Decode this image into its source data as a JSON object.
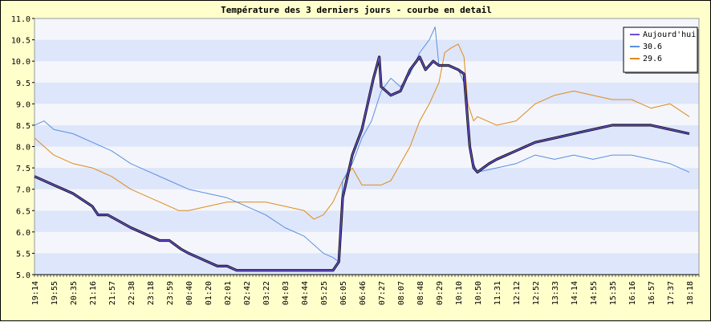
{
  "chart_data": {
    "type": "line",
    "title": "Température des 3 derniers jours - courbe en detail",
    "ylim": [
      5.0,
      11.0
    ],
    "yticks": [
      "5.0",
      "5.5",
      "6.0",
      "6.5",
      "7.0",
      "7.5",
      "8.0",
      "8.5",
      "9.0",
      "9.5",
      "10.0",
      "10.5",
      "11.0"
    ],
    "x_tick_labels": [
      "19:14",
      "19:55",
      "20:35",
      "21:16",
      "21:57",
      "22:38",
      "23:18",
      "23:59",
      "00:40",
      "01:20",
      "02:01",
      "02:42",
      "03:22",
      "04:03",
      "04:44",
      "05:25",
      "06:05",
      "06:46",
      "07:27",
      "08:07",
      "08:48",
      "09:29",
      "10:10",
      "10:50",
      "11:31",
      "12:12",
      "12:52",
      "13:33",
      "14:14",
      "14:55",
      "15:35",
      "16:16",
      "16:57",
      "17:37",
      "18:18"
    ],
    "grid": "horizontal bands",
    "legend_position": "top-right",
    "series": [
      {
        "name": "Aujourd'hui",
        "color": "#6a4fd8",
        "x": [
          0,
          1,
          2,
          3,
          3.3,
          3.8,
          4.2,
          5,
          6,
          6.5,
          7,
          7.3,
          7.6,
          8,
          8.5,
          9,
          9.5,
          10,
          10.5,
          11,
          12,
          13,
          14,
          15,
          15.5,
          15.8,
          16,
          16.2,
          16.5,
          17,
          17.3,
          17.6,
          17.9,
          18,
          18.5,
          19,
          19.5,
          20,
          20.3,
          20.7,
          21,
          21.5,
          22,
          22.3,
          22.6,
          22.8,
          23,
          23.3,
          23.6,
          24,
          24.5,
          25,
          25.5,
          26,
          27,
          28,
          29,
          30,
          31,
          32,
          33,
          34
        ],
        "y": [
          7.3,
          7.1,
          6.9,
          6.6,
          6.4,
          6.4,
          6.3,
          6.1,
          5.9,
          5.8,
          5.8,
          5.7,
          5.6,
          5.5,
          5.4,
          5.3,
          5.2,
          5.2,
          5.1,
          5.1,
          5.1,
          5.1,
          5.1,
          5.1,
          5.1,
          5.3,
          6.8,
          7.2,
          7.8,
          8.4,
          9.0,
          9.6,
          10.1,
          9.4,
          9.2,
          9.3,
          9.8,
          10.1,
          9.8,
          10.0,
          9.9,
          9.9,
          9.8,
          9.7,
          8.0,
          7.5,
          7.4,
          7.5,
          7.6,
          7.7,
          7.8,
          7.9,
          8.0,
          8.1,
          8.2,
          8.3,
          8.4,
          8.5,
          8.5,
          8.5,
          8.4,
          8.3
        ]
      },
      {
        "name": "30.6",
        "color": "#5a8fe0",
        "x": [
          0,
          0.5,
          1,
          2,
          3,
          4,
          5,
          6,
          7,
          8,
          9,
          10,
          11,
          12,
          13,
          14,
          15,
          15.5,
          15.8,
          16,
          16.5,
          17,
          17.5,
          18,
          18.5,
          19,
          19.5,
          20,
          20.5,
          20.8,
          21,
          21.5,
          22,
          22.3,
          22.6,
          22.8,
          23,
          24,
          25,
          26,
          27,
          28,
          29,
          30,
          31,
          32,
          33,
          34
        ],
        "y": [
          8.5,
          8.6,
          8.4,
          8.3,
          8.1,
          7.9,
          7.6,
          7.4,
          7.2,
          7.0,
          6.9,
          6.8,
          6.6,
          6.4,
          6.1,
          5.9,
          5.5,
          5.4,
          5.3,
          7.2,
          7.6,
          8.2,
          8.6,
          9.3,
          9.6,
          9.4,
          9.7,
          10.2,
          10.5,
          10.8,
          9.9,
          9.9,
          9.8,
          9.5,
          8.0,
          7.6,
          7.4,
          7.5,
          7.6,
          7.8,
          7.7,
          7.8,
          7.7,
          7.8,
          7.8,
          7.7,
          7.6,
          7.4
        ]
      },
      {
        "name": "29.6",
        "color": "#e08a1a",
        "x": [
          0,
          1,
          2,
          3,
          4,
          5,
          6,
          7,
          7.5,
          8,
          9,
          10,
          11,
          12,
          13,
          14,
          14.5,
          15,
          15.5,
          16,
          16.5,
          17,
          18,
          18.5,
          19,
          19.5,
          20,
          20.5,
          21,
          21.3,
          21.6,
          22,
          22.3,
          22.5,
          22.8,
          23,
          24,
          25,
          25.5,
          26,
          27,
          28,
          29,
          30,
          31,
          32,
          33,
          34
        ],
        "y": [
          8.2,
          7.8,
          7.6,
          7.5,
          7.3,
          7.0,
          6.8,
          6.6,
          6.5,
          6.5,
          6.6,
          6.7,
          6.7,
          6.7,
          6.6,
          6.5,
          6.3,
          6.4,
          6.7,
          7.2,
          7.5,
          7.1,
          7.1,
          7.2,
          7.6,
          8.0,
          8.6,
          9.0,
          9.5,
          10.2,
          10.3,
          10.4,
          10.1,
          9.0,
          8.6,
          8.7,
          8.5,
          8.6,
          8.8,
          9.0,
          9.2,
          9.3,
          9.2,
          9.1,
          9.1,
          8.9,
          9.0,
          8.7
        ]
      }
    ]
  }
}
